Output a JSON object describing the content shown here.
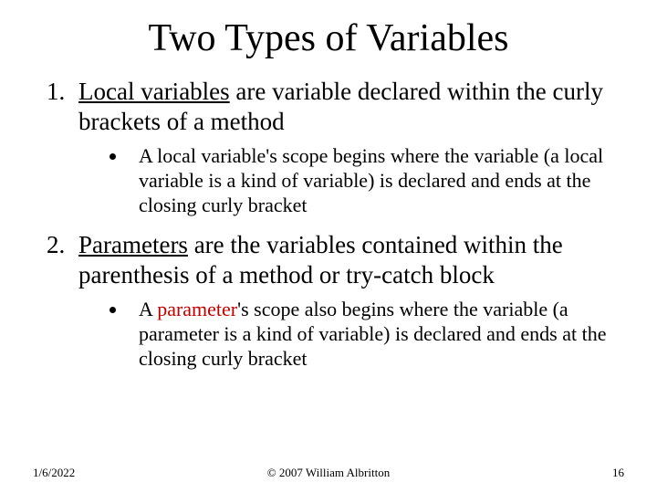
{
  "colors": {
    "text": "#000000",
    "background": "#ffffff",
    "accent_red": "#c00000"
  },
  "typography": {
    "family": "Times New Roman",
    "title_size_pt": 42,
    "main_size_pt": 27,
    "sub_size_pt": 22,
    "footer_size_pt": 13
  },
  "title": "Two Types of Variables",
  "items": [
    {
      "term": "Local variables",
      "rest": " are variable declared within the curly brackets of a method",
      "sub": "A local variable's scope begins where the variable (a local variable is a kind of variable) is declared and ends at the closing curly bracket"
    },
    {
      "term": "Parameters",
      "rest": " are the variables contained within the parenthesis of a method or try-catch block",
      "sub_pre": "A ",
      "sub_red": "parameter",
      "sub_post": "'s scope also begins where the variable (a parameter is a kind of variable) is declared and ends at the closing curly bracket"
    }
  ],
  "footer": {
    "date": "1/6/2022",
    "copyright": "© 2007 William Albritton",
    "page": "16"
  }
}
